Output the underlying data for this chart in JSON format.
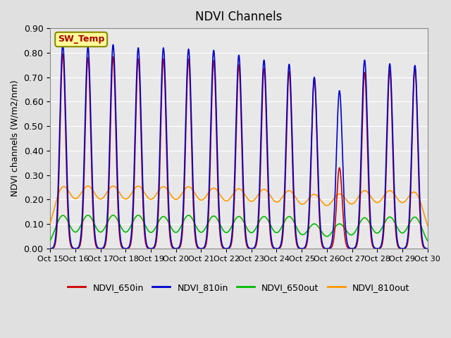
{
  "title": "NDVI Channels",
  "ylabel": "NDVI channels (W/m2/nm)",
  "ylim": [
    0.0,
    0.9
  ],
  "yticks": [
    0.0,
    0.1,
    0.2,
    0.3,
    0.4,
    0.5,
    0.6,
    0.7,
    0.8,
    0.9
  ],
  "x_tick_labels": [
    "Oct 15",
    "Oct 16",
    "Oct 17",
    "Oct 18",
    "Oct 19",
    "Oct 20",
    "Oct 21",
    "Oct 22",
    "Oct 23",
    "Oct 24",
    "Oct 25",
    "Oct 26",
    "Oct 27",
    "Oct 28",
    "Oct 29",
    "Oct 30"
  ],
  "background_color": "#e0e0e0",
  "plot_bg_color": "#e8e8e8",
  "colors": {
    "NDVI_650in": "#cc0000",
    "NDVI_810in": "#0000cc",
    "NDVI_650out": "#00bb00",
    "NDVI_810out": "#ff9900"
  },
  "sw_temp_label": "SW_Temp",
  "sw_temp_color": "#aa0000",
  "sw_temp_bg": "#ffff99",
  "peaks_810in": [
    0.835,
    0.825,
    0.833,
    0.82,
    0.82,
    0.815,
    0.81,
    0.79,
    0.77,
    0.753,
    0.7,
    0.645,
    0.77,
    0.755,
    0.748
  ],
  "peaks_650in": [
    0.795,
    0.78,
    0.783,
    0.775,
    0.775,
    0.775,
    0.768,
    0.75,
    0.735,
    0.723,
    0.695,
    0.33,
    0.72,
    0.728,
    0.74
  ],
  "peaks_650out": [
    0.135,
    0.135,
    0.135,
    0.135,
    0.13,
    0.135,
    0.132,
    0.13,
    0.13,
    0.13,
    0.1,
    0.1,
    0.125,
    0.128,
    0.128
  ],
  "peaks_810out": [
    0.245,
    0.24,
    0.24,
    0.24,
    0.238,
    0.238,
    0.232,
    0.23,
    0.228,
    0.223,
    0.208,
    0.21,
    0.223,
    0.223,
    0.223
  ],
  "n_peaks": 15,
  "total_days": 15
}
